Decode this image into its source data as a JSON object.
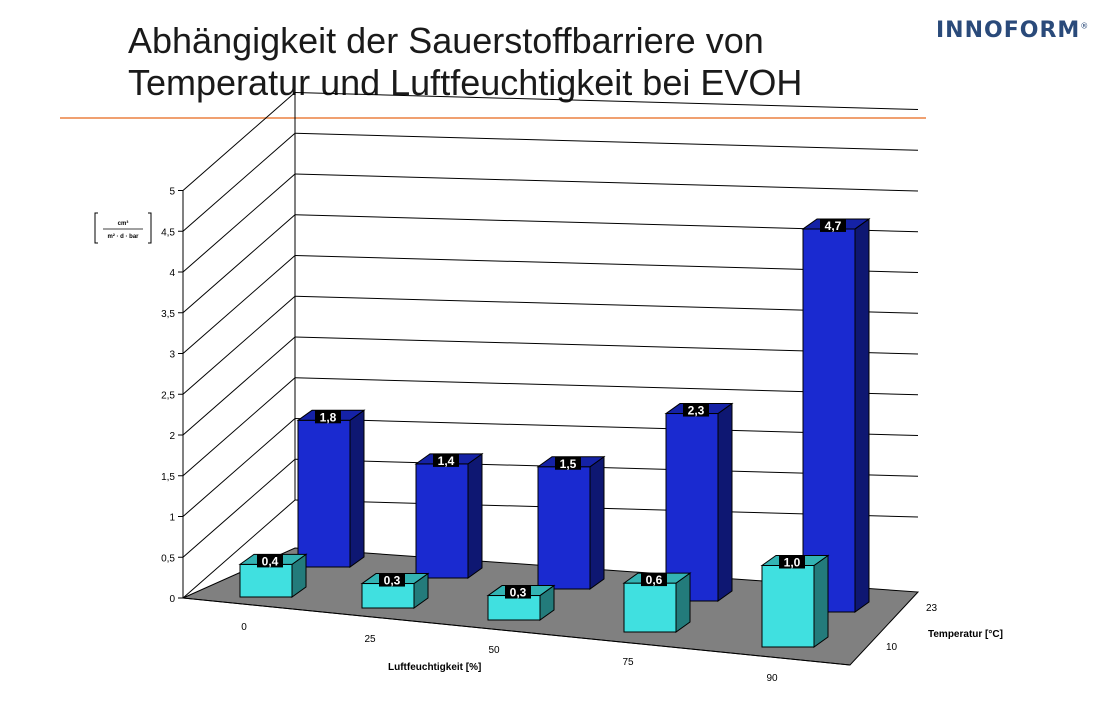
{
  "header": {
    "title_line1": "Abhängigkeit der Sauerstoffbarriere von",
    "title_line2": "Temperatur und Luftfeuchtigkeit bei EVOH",
    "logo": "INNOFORM",
    "logo_mark": "®"
  },
  "chart_data": {
    "type": "bar",
    "title": "",
    "xlabel": "Luftfeuchtigkeit [%]",
    "zlabel": "Temperatur [°C]",
    "ylabel_unit": "cm³ / m² · d · bar",
    "ylim": [
      0,
      5
    ],
    "yticks": [
      "0",
      "0,5",
      "1",
      "1,5",
      "2",
      "2,5",
      "3",
      "3,5",
      "4",
      "4,5",
      "5"
    ],
    "categories": [
      "0",
      "25",
      "50",
      "75",
      "90"
    ],
    "series": [
      {
        "name": "10",
        "values": [
          0.4,
          0.3,
          0.3,
          0.6,
          1.0
        ],
        "labels": [
          "0,4",
          "0,3",
          "0,3",
          "0,6",
          "1,0"
        ],
        "color": "#40e0e0"
      },
      {
        "name": "23",
        "values": [
          1.8,
          1.4,
          1.5,
          2.3,
          4.7
        ],
        "labels": [
          "1,8",
          "1,4",
          "1,5",
          "2,3",
          "4,7"
        ],
        "color": "#1a2ad0"
      }
    ],
    "grid": true,
    "floor_color": "#808080"
  }
}
